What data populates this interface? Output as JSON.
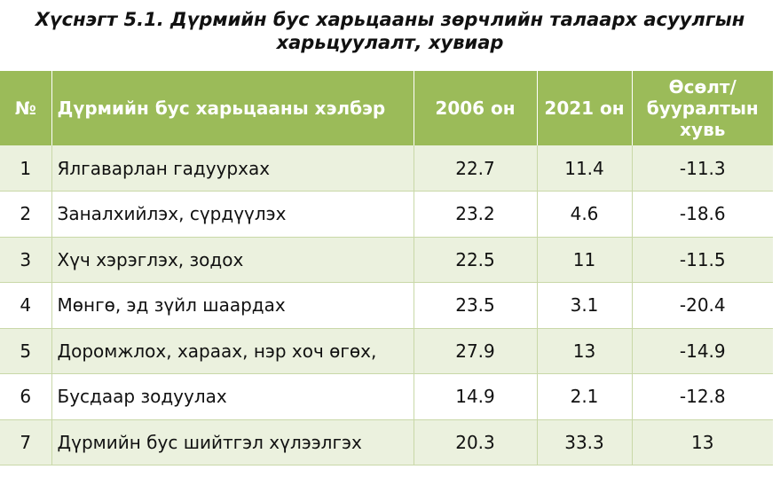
{
  "caption": {
    "line1": "Хүснэгт 5.1. Дүрмийн бус харьцааны зөрчлийн талаарх асуулгын",
    "line2": "харьцуулалт, хувиар"
  },
  "table": {
    "headers": {
      "num": "№",
      "type": "Дүрмийн бус харьцааны хэлбэр",
      "y2006": "2006 он",
      "y2021": "2021 он",
      "change_line1": "Өсөлт/",
      "change_line2": "бууралтын",
      "change_line3": "хувь"
    },
    "rows": [
      {
        "num": "1",
        "type": "Ялгаварлан гадуурхах",
        "y2006": "22.7",
        "y2021": "11.4",
        "change": "-11.3"
      },
      {
        "num": "2",
        "type": "Заналхийлэх, сүрдүүлэх",
        "y2006": "23.2",
        "y2021": "4.6",
        "change": "-18.6"
      },
      {
        "num": "3",
        "type": "Хүч хэрэглэх, зодох",
        "y2006": "22.5",
        "y2021": "11",
        "change": "-11.5"
      },
      {
        "num": "4",
        "type": "Мөнгө, эд зүйл шаардах",
        "y2006": "23.5",
        "y2021": "3.1",
        "change": "-20.4"
      },
      {
        "num": "5",
        "type": "Доромжлох, хараах, нэр хоч өгөх,",
        "y2006": "27.9",
        "y2021": "13",
        "change": "-14.9"
      },
      {
        "num": "6",
        "type": "Бусдаар зодуулах",
        "y2006": "14.9",
        "y2021": "2.1",
        "change": "-12.8"
      },
      {
        "num": "7",
        "type": "Дүрмийн бус шийтгэл хүлээлгэх",
        "y2006": "20.3",
        "y2021": "33.3",
        "change": "13"
      }
    ]
  }
}
